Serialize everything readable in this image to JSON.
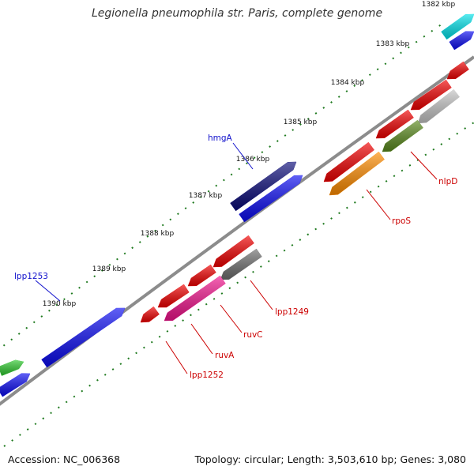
{
  "header": {
    "title": "Legionella pneumophila str. Paris, complete genome"
  },
  "footer": {
    "accession": "Accession: NC_006368",
    "summary": "Topology: circular; Length: 3,503,610 bp; Genes: 3,080"
  },
  "scale_labels": [
    "1382 kbp",
    "1383 kbp",
    "1384 kbp",
    "1385 kbp",
    "1386 kbp",
    "1387 kbp",
    "1388 kbp",
    "1389 kbp",
    "1390 kbp"
  ],
  "colors": {
    "backbone": "#8c8c8c",
    "tick": "#1f7a1f",
    "forward_label": "#1010cc",
    "reverse_label": "#cc0000"
  },
  "gene_labels": {
    "forward": [
      "hmgA",
      "lpp1253"
    ],
    "reverse": [
      "nlpD",
      "rpoS",
      "lpp1249",
      "ruvC",
      "ruvA",
      "lpp1252"
    ]
  },
  "feature_colors": {
    "blue": "#0a0af0",
    "navy": "#0a0a78",
    "cyan": "#00e0e8",
    "green": "#2ec82e",
    "red": "#f00000",
    "grey": "#6e6e6e",
    "lightgrey": "#c4c4c4",
    "olive": "#5a8a1e",
    "orange": "#ff8c00",
    "magenta": "#f0148c"
  }
}
